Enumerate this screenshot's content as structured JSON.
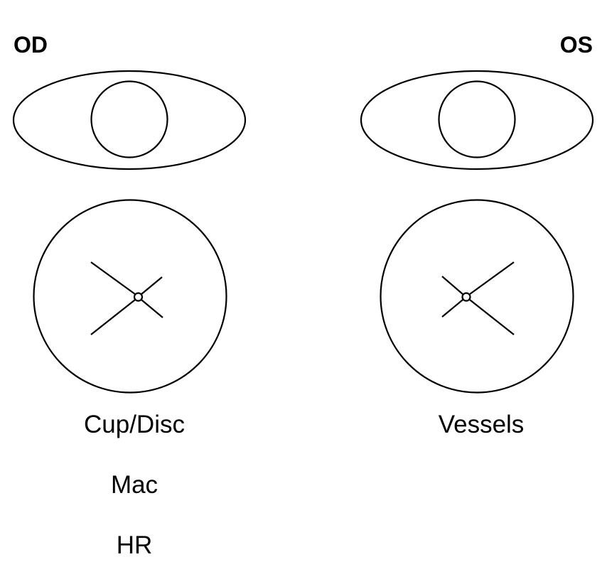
{
  "eyes": {
    "right": {
      "label": "OD"
    },
    "left": {
      "label": "OS"
    }
  },
  "fundus_fields": {
    "right": [
      "Cup/Disc",
      "Mac",
      "HR"
    ],
    "left": [
      "Vessels"
    ]
  },
  "colors": {
    "line": "#000000",
    "background": "#ffffff"
  }
}
